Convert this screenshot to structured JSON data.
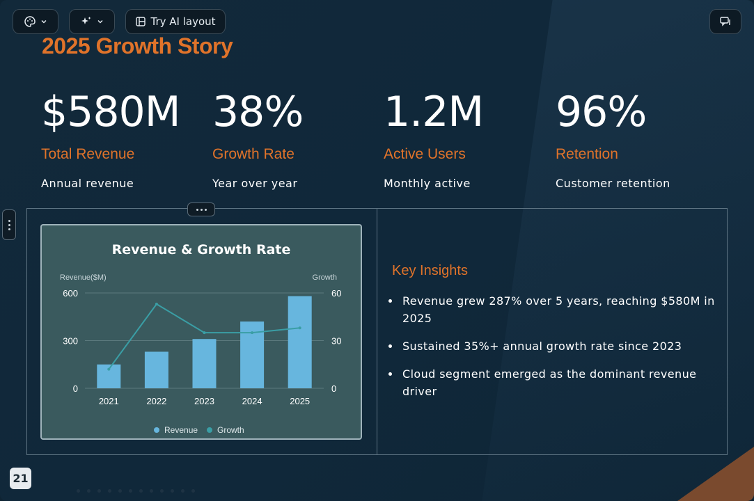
{
  "toolbar": {
    "theme_icon": "palette-icon",
    "ai_icon": "sparkle-icon",
    "layout_label": "Try AI layout",
    "layout_icon": "layout-icon",
    "comment_icon": "comment-icon"
  },
  "slide": {
    "title": "2025 Growth Story",
    "stats": [
      {
        "value": "$580M",
        "label": "Total Revenue",
        "desc": "Annual revenue"
      },
      {
        "value": "38%",
        "label": "Growth Rate",
        "desc": "Year over year"
      },
      {
        "value": "1.2M",
        "label": "Active Users",
        "desc": "Monthly active"
      },
      {
        "value": "96%",
        "label": "Retention",
        "desc": "Customer retention"
      }
    ],
    "insights_title": "Key Insights",
    "insights": [
      "Revenue grew 287% over 5 years, reaching $580M in 2025",
      "Sustained 35%+ annual growth rate since 2023",
      "Cloud segment emerged as the dominant revenue driver"
    ],
    "page_number": "21"
  },
  "colors": {
    "accent": "#e0732a",
    "bar": "#67b6de",
    "line": "#3a9ea5",
    "card": "#3a5a5e"
  },
  "chart_data": {
    "type": "bar",
    "title": "Revenue & Growth Rate",
    "categories": [
      "2021",
      "2022",
      "2023",
      "2024",
      "2025"
    ],
    "series": [
      {
        "name": "Revenue",
        "type": "bar",
        "axis": "left",
        "values": [
          150,
          230,
          310,
          420,
          580
        ]
      },
      {
        "name": "Growth",
        "type": "line",
        "axis": "right",
        "values": [
          12,
          53,
          35,
          35,
          38
        ]
      }
    ],
    "ylabel": "Revenue($M)",
    "y2label": "Growth",
    "ylim": [
      0,
      600
    ],
    "y2lim": [
      0,
      60
    ],
    "yticks": [
      "0",
      "300",
      "600"
    ],
    "y2ticks": [
      "0",
      "30",
      "60"
    ],
    "grid": true,
    "legend": "bottom"
  }
}
